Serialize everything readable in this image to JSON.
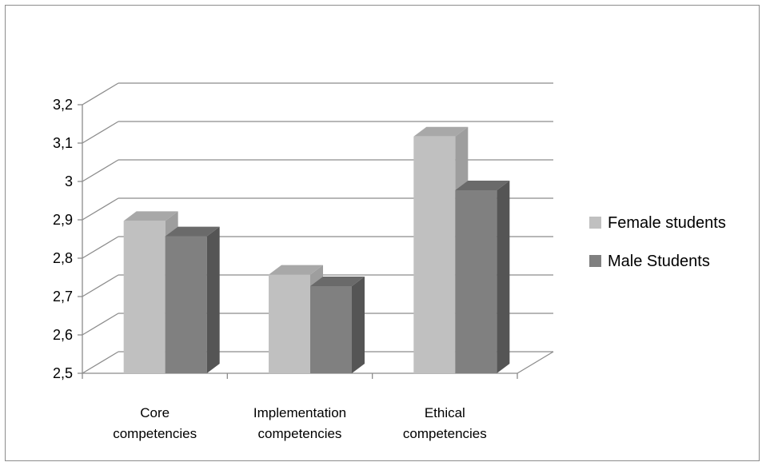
{
  "chart_data": {
    "type": "bar",
    "style": "3d-clustered-column",
    "categories": [
      [
        "Core",
        "competencies"
      ],
      [
        "Implementation",
        "competencies"
      ],
      [
        "Ethical",
        "competencies"
      ]
    ],
    "series": [
      {
        "name": "Female students",
        "values": [
          2.92,
          2.78,
          3.14
        ],
        "color": "#c0c0c0"
      },
      {
        "name": "Male Students",
        "values": [
          2.88,
          2.75,
          3.0
        ],
        "color": "#808080"
      }
    ],
    "ylim": [
      2.5,
      3.2
    ],
    "y_ticks": [
      "2,5",
      "2,6",
      "2,7",
      "2,8",
      "2,9",
      "3",
      "3,1",
      "3,2"
    ],
    "grid": true,
    "legend": "right"
  }
}
